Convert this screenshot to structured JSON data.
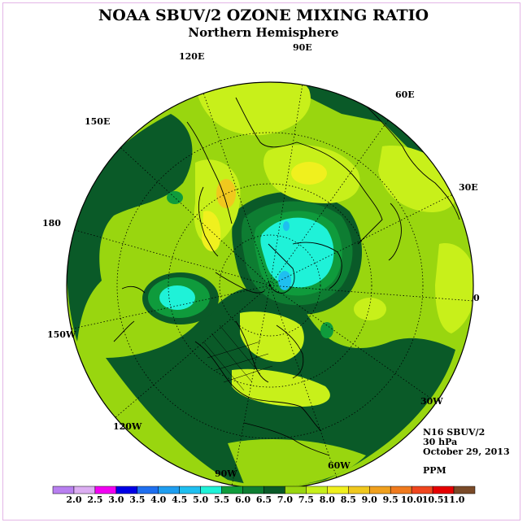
{
  "title": "NOAA SBUV/2 OZONE MIXING RATIO",
  "subtitle": "Northern Hemisphere",
  "longitude_labels": {
    "lon_90e": "90E",
    "lon_120e": "120E",
    "lon_60e": "60E",
    "lon_150e": "150E",
    "lon_30e": "30E",
    "lon_180": "180",
    "lon_0": "0",
    "lon_150w": "150W",
    "lon_30w": "30W",
    "lon_120w": "120W",
    "lon_60w": "60W",
    "lon_90w": "90W"
  },
  "info": {
    "instrument": "N16 SBUV/2",
    "level": "30 hPa",
    "date": "October 29, 2013",
    "units": "PPM"
  },
  "colorbar": {
    "colors": [
      "#b87ff0",
      "#dcaef2",
      "#f200f2",
      "#0000e6",
      "#1f6ff0",
      "#1f9ef0",
      "#1fbff0",
      "#1ff2d8",
      "#0f9b3c",
      "#0e7d32",
      "#0a5a28",
      "#99d60f",
      "#c8f01a",
      "#f0f01e",
      "#f0c81e",
      "#f0a01e",
      "#f07a1e",
      "#f0461e",
      "#e60000",
      "#7a4a28"
    ],
    "labels": [
      "2.0",
      "2.5",
      "3.0",
      "3.5",
      "4.0",
      "4.5",
      "5.0",
      "5.5",
      "6.0",
      "6.5",
      "7.0",
      "7.5",
      "8.0",
      "8.5",
      "9.0",
      "9.5",
      "10.0",
      "10.5",
      "11.0"
    ]
  },
  "map_colors": {
    "dark_green": "#0a5a28",
    "mid_green": "#0e7d32",
    "green": "#0f9b3c",
    "light_green": "#99d60f",
    "yellow_green": "#c8f01a",
    "yellow": "#f0f01e",
    "orange_yellow": "#f0c81e",
    "cyan": "#1ff2d8",
    "light_blue": "#1fbff0"
  }
}
